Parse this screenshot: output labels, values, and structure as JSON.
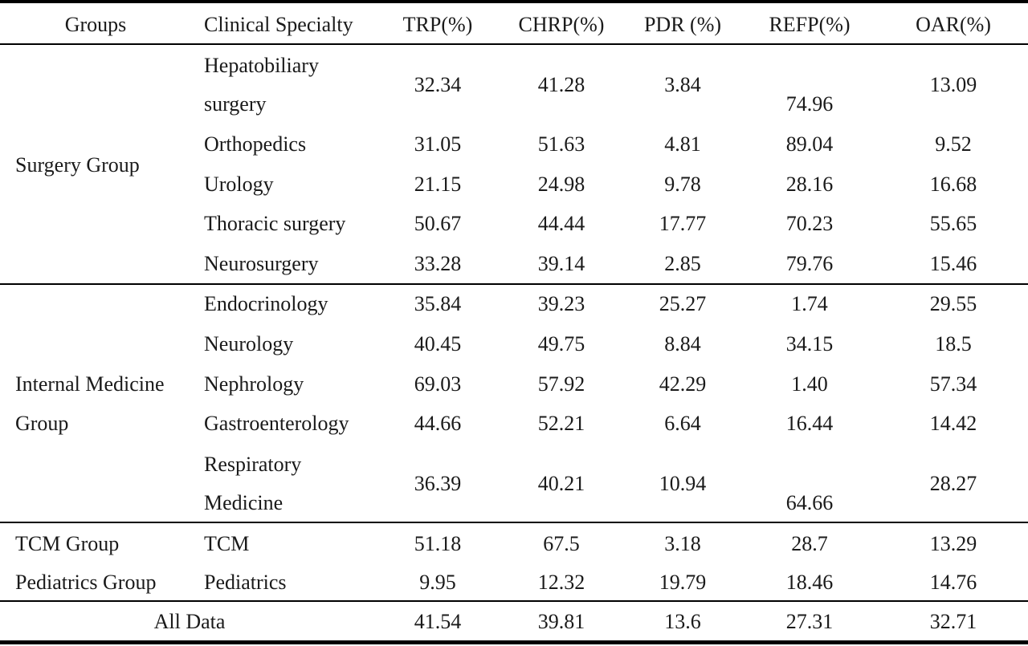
{
  "headers": [
    "Groups",
    "Clinical Specialty",
    "TRP(%)",
    "CHRP(%)",
    "PDR (%)",
    "REFP(%)",
    "OAR(%)"
  ],
  "groups": {
    "surgery": "Surgery Group",
    "internal_line1": "Internal Medicine",
    "internal_line2": "Group",
    "tcm": "TCM Group",
    "pediatrics": "Pediatrics Group"
  },
  "rows": [
    {
      "specialty": [
        "Hepatobiliary",
        "surgery"
      ],
      "trp": "32.34",
      "chrp": "41.28",
      "pdr": "3.84",
      "refp": "74.96",
      "oar": "13.09"
    },
    {
      "specialty": [
        "Orthopedics"
      ],
      "trp": "31.05",
      "chrp": "51.63",
      "pdr": "4.81",
      "refp": "89.04",
      "oar": "9.52"
    },
    {
      "specialty": [
        "Urology"
      ],
      "trp": "21.15",
      "chrp": "24.98",
      "pdr": "9.78",
      "refp": "28.16",
      "oar": "16.68"
    },
    {
      "specialty": [
        "Thoracic surgery"
      ],
      "trp": "50.67",
      "chrp": "44.44",
      "pdr": "17.77",
      "refp": "70.23",
      "oar": "55.65"
    },
    {
      "specialty": [
        "Neurosurgery"
      ],
      "trp": "33.28",
      "chrp": "39.14",
      "pdr": "2.85",
      "refp": "79.76",
      "oar": "15.46"
    },
    {
      "specialty": [
        "Endocrinology"
      ],
      "trp": "35.84",
      "chrp": "39.23",
      "pdr": "25.27",
      "refp": "1.74",
      "oar": "29.55"
    },
    {
      "specialty": [
        "Neurology"
      ],
      "trp": "40.45",
      "chrp": "49.75",
      "pdr": "8.84",
      "refp": "34.15",
      "oar": "18.5"
    },
    {
      "specialty": [
        "Nephrology"
      ],
      "trp": "69.03",
      "chrp": "57.92",
      "pdr": "42.29",
      "refp": "1.40",
      "oar": "57.34"
    },
    {
      "specialty": [
        "Gastroenterology"
      ],
      "trp": "44.66",
      "chrp": "52.21",
      "pdr": "6.64",
      "refp": "16.44",
      "oar": "14.42"
    },
    {
      "specialty": [
        "Respiratory",
        "Medicine"
      ],
      "trp": "36.39",
      "chrp": "40.21",
      "pdr": "10.94",
      "refp": "64.66",
      "oar": "28.27"
    },
    {
      "specialty": [
        "TCM"
      ],
      "trp": "51.18",
      "chrp": "67.5",
      "pdr": "3.18",
      "refp": "28.7",
      "oar": "13.29"
    },
    {
      "specialty": [
        "Pediatrics"
      ],
      "trp": "9.95",
      "chrp": "12.32",
      "pdr": "19.79",
      "refp": "18.46",
      "oar": "14.76"
    }
  ],
  "all_data": {
    "label": "All Data",
    "trp": "41.54",
    "chrp": "39.81",
    "pdr": "13.6",
    "refp": "27.31",
    "oar": "32.71"
  }
}
